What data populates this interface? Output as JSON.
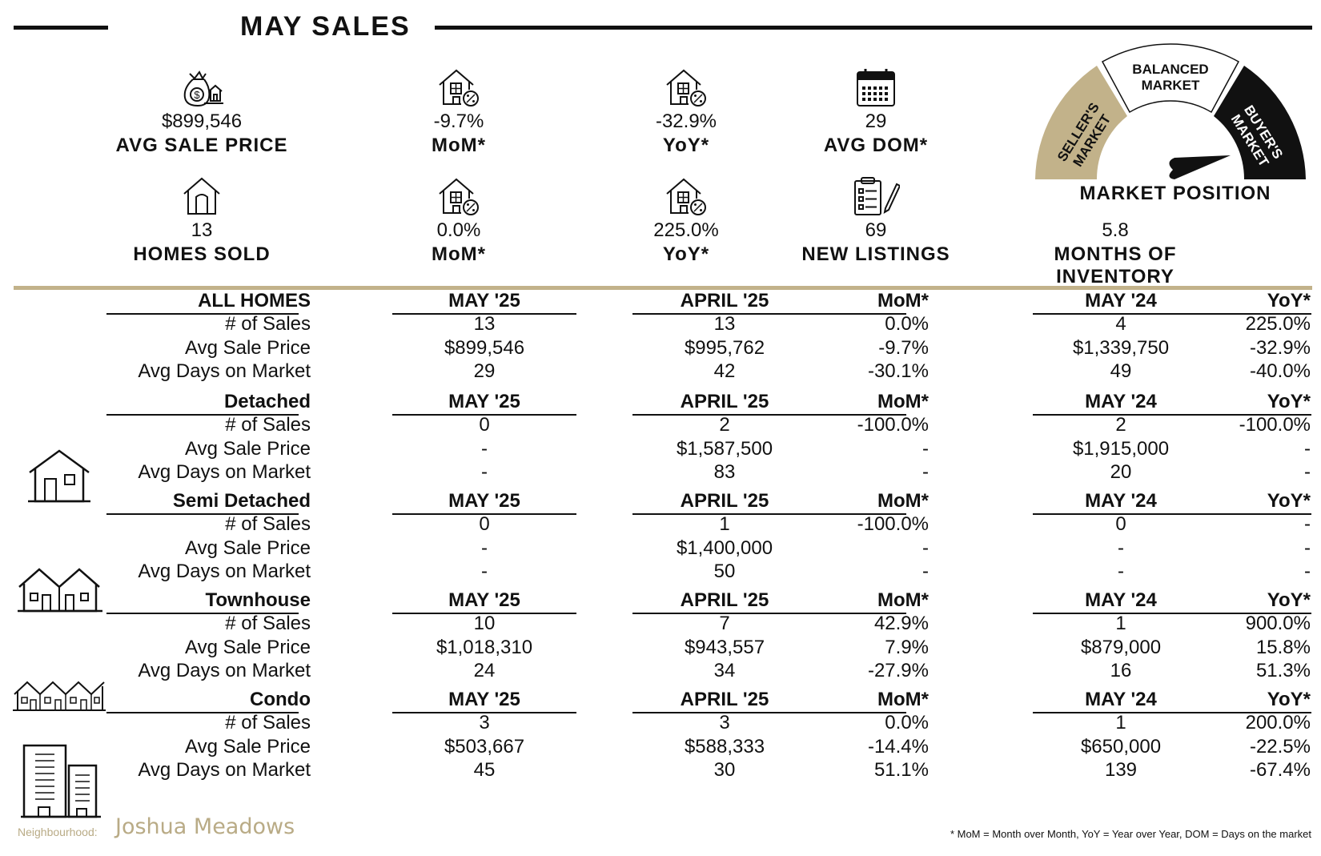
{
  "header": {
    "title": "MAY SALES"
  },
  "kpis_top": [
    {
      "icon": "money-bag-house-icon",
      "value": "$899,546",
      "label": "AVG SALE PRICE"
    },
    {
      "icon": "house-percent-icon",
      "value": "-9.7%",
      "label": "MoM*"
    },
    {
      "icon": "house-percent-icon",
      "value": "-32.9%",
      "label": "YoY*"
    },
    {
      "icon": "calendar-icon",
      "value": "29",
      "label": "AVG DOM*"
    }
  ],
  "kpis_bottom": [
    {
      "icon": "house-icon",
      "value": "13",
      "label": "HOMES SOLD"
    },
    {
      "icon": "house-percent-icon",
      "value": "0.0%",
      "label": "MoM*"
    },
    {
      "icon": "house-percent-icon",
      "value": "225.0%",
      "label": "YoY*"
    },
    {
      "icon": "clipboard-pen-icon",
      "value": "69",
      "label": "NEW LISTINGS"
    },
    {
      "value": "5.8",
      "label": "MONTHS OF INVENTORY"
    }
  ],
  "gauge": {
    "label": "MARKET POSITION",
    "segments": [
      "SELLER'S MARKET",
      "BALANCED MARKET",
      "BUYER'S MARKET"
    ],
    "segment_lines": [
      [
        "SELLER'S",
        "MARKET"
      ],
      [
        "BALANCED",
        "MARKET"
      ],
      [
        "BUYER'S",
        "MARKET"
      ]
    ],
    "colors": {
      "seller": "#c2b28a",
      "balanced": "#ffffff",
      "buyer": "#111111"
    },
    "pointer": "buyer"
  },
  "columns": [
    "MAY '25",
    "APRIL '25",
    "MoM*",
    "MAY '24",
    "YoY*"
  ],
  "row_labels": [
    "# of Sales",
    "Avg Sale Price",
    "Avg Days on Market"
  ],
  "sections": [
    {
      "name": "ALL HOMES",
      "icon": "",
      "rows": [
        [
          "13",
          "13",
          "0.0%",
          "4",
          "225.0%"
        ],
        [
          "$899,546",
          "$995,762",
          "-9.7%",
          "$1,339,750",
          "-32.9%"
        ],
        [
          "29",
          "42",
          "-30.1%",
          "49",
          "-40.0%"
        ]
      ]
    },
    {
      "name": "Detached",
      "icon": "detached-house-icon",
      "rows": [
        [
          "0",
          "2",
          "-100.0%",
          "2",
          "-100.0%"
        ],
        [
          "-",
          "$1,587,500",
          "-",
          "$1,915,000",
          "-"
        ],
        [
          "-",
          "83",
          "-",
          "20",
          "-"
        ]
      ]
    },
    {
      "name": "Semi Detached",
      "icon": "semi-detached-house-icon",
      "rows": [
        [
          "0",
          "1",
          "-100.0%",
          "0",
          "-"
        ],
        [
          "-",
          "$1,400,000",
          "-",
          "-",
          "-"
        ],
        [
          "-",
          "50",
          "-",
          "-",
          "-"
        ]
      ]
    },
    {
      "name": "Townhouse",
      "icon": "townhouse-icon",
      "rows": [
        [
          "10",
          "7",
          "42.9%",
          "1",
          "900.0%"
        ],
        [
          "$1,018,310",
          "$943,557",
          "7.9%",
          "$879,000",
          "15.8%"
        ],
        [
          "24",
          "34",
          "-27.9%",
          "16",
          "51.3%"
        ]
      ]
    },
    {
      "name": "Condo",
      "icon": "condo-building-icon",
      "rows": [
        [
          "3",
          "3",
          "0.0%",
          "1",
          "200.0%"
        ],
        [
          "$503,667",
          "$588,333",
          "-14.4%",
          "$650,000",
          "-22.5%"
        ],
        [
          "45",
          "30",
          "51.1%",
          "139",
          "-67.4%"
        ]
      ]
    }
  ],
  "footer": {
    "neighbourhood_label": "Neighbourhood:",
    "neighbourhood_name": "Joshua Meadows",
    "note": "* MoM = Month over Month, YoY = Year over Year, DOM = Days on the market"
  }
}
